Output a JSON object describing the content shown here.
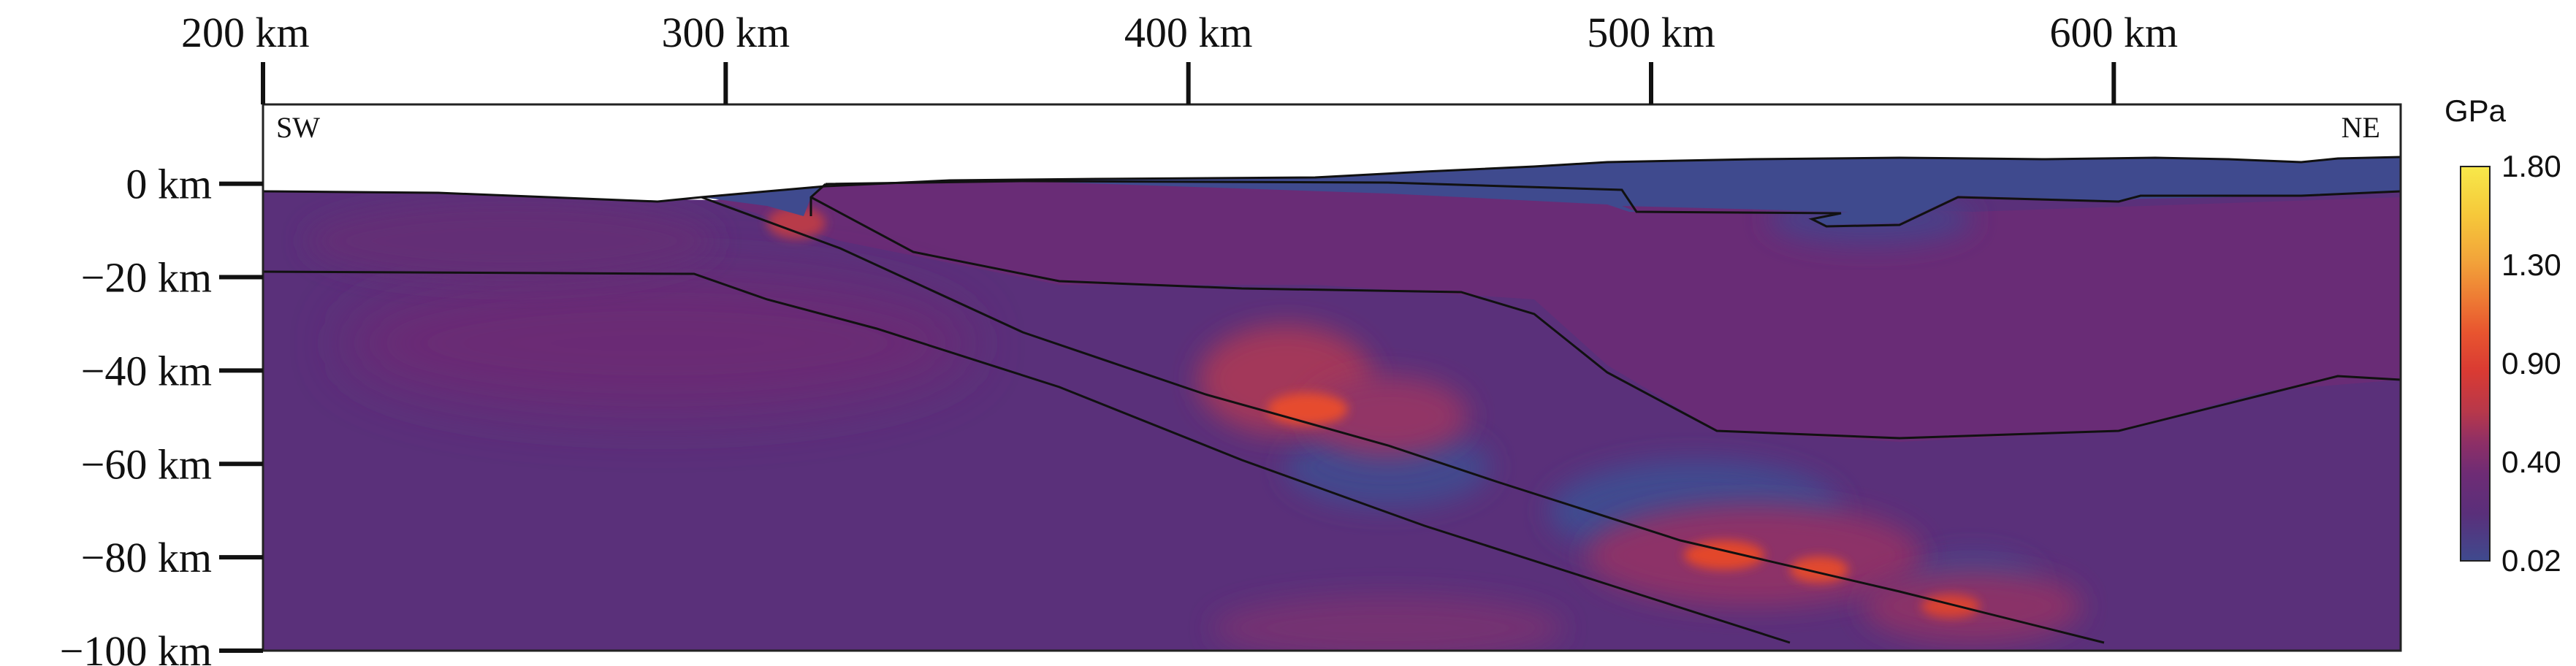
{
  "x_axis": {
    "ticks": [
      {
        "value": 200,
        "label": "200 km"
      },
      {
        "value": 300,
        "label": "300 km"
      },
      {
        "value": 400,
        "label": "400 km"
      },
      {
        "value": 500,
        "label": "500 km"
      },
      {
        "value": 600,
        "label": "600 km"
      }
    ],
    "range": [
      200,
      662
    ]
  },
  "y_axis": {
    "ticks": [
      {
        "value": 0,
        "label": "0 km"
      },
      {
        "value": -20,
        "label": "−20 km"
      },
      {
        "value": -40,
        "label": "−40 km"
      },
      {
        "value": -60,
        "label": "−60 km"
      },
      {
        "value": -80,
        "label": "−80 km"
      },
      {
        "value": -100,
        "label": "−100 km"
      }
    ],
    "range": [
      -100,
      17
    ]
  },
  "profile_ends": {
    "left": "SW",
    "right": "NE"
  },
  "colorbar": {
    "unit": "GPa",
    "ticks": [
      "1.80",
      "1.30",
      "0.90",
      "0.40",
      "0.02"
    ],
    "tick_values": [
      1.8,
      1.3,
      0.9,
      0.4,
      0.02
    ],
    "colors_top_to_bottom": [
      "#f7e84a",
      "#f6c93a",
      "#f2a33a",
      "#ee7d34",
      "#e8552f",
      "#d93a33",
      "#b8384a",
      "#8e2f66",
      "#6e2c75",
      "#5a2f7a",
      "#3f4a8e"
    ]
  },
  "colors": {
    "background_field": "#5b2f78",
    "upper_plate": "#6c2b74",
    "low_stress": "#3e4b8f",
    "high_stress": "#e8452c"
  }
}
